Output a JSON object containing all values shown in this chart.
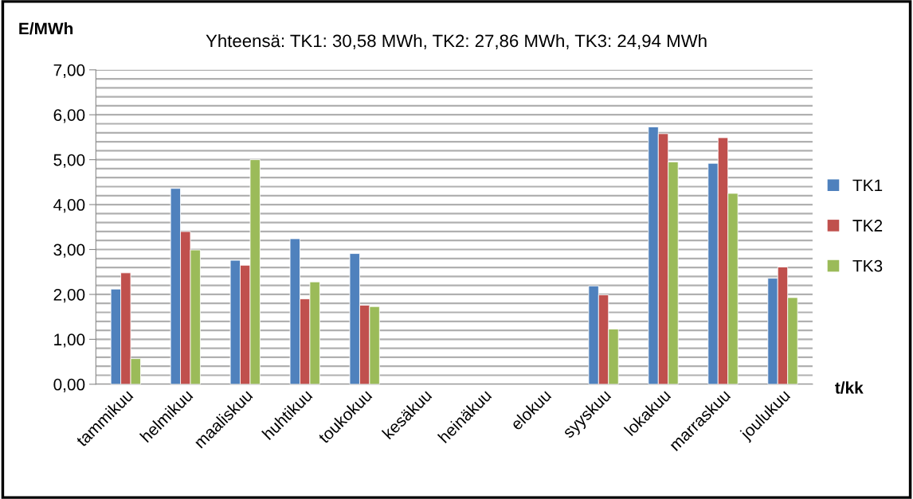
{
  "chart_data": {
    "type": "bar",
    "title": "Yhteensä: TK1: 30,58 MWh, TK2: 27,86 MWh, TK3: 24,94 MWh",
    "ylabel": "E/MWh",
    "xlabel": "t/kk",
    "categories": [
      "tammikuu",
      "helmikuu",
      "maaliskuu",
      "huhtikuu",
      "toukokuu",
      "kesäkuu",
      "heinäkuu",
      "elokuu",
      "syyskuu",
      "lokakuu",
      "marraskuu",
      "joulukuu"
    ],
    "series": [
      {
        "name": "TK1",
        "color": "#4f81bd",
        "values": [
          2.12,
          4.36,
          2.76,
          3.24,
          2.91,
          null,
          null,
          null,
          2.19,
          5.73,
          4.92,
          2.36
        ]
      },
      {
        "name": "TK2",
        "color": "#c0504d",
        "values": [
          2.48,
          3.4,
          2.65,
          1.9,
          1.76,
          null,
          null,
          null,
          1.99,
          5.58,
          5.49,
          2.61
        ]
      },
      {
        "name": "TK3",
        "color": "#9bbb59",
        "values": [
          0.57,
          2.99,
          5.0,
          2.28,
          1.73,
          null,
          null,
          null,
          1.23,
          4.95,
          4.25,
          1.93
        ]
      }
    ],
    "ylim": [
      0,
      7
    ],
    "yticks": [
      {
        "value": 0,
        "label": "0,00"
      },
      {
        "value": 0.2,
        "label": null
      },
      {
        "value": 0.4,
        "label": null
      },
      {
        "value": 0.6,
        "label": null
      },
      {
        "value": 0.8,
        "label": null
      },
      {
        "value": 1,
        "label": "1,00"
      },
      {
        "value": 1.2,
        "label": null
      },
      {
        "value": 1.4,
        "label": null
      },
      {
        "value": 1.6,
        "label": null
      },
      {
        "value": 1.8,
        "label": null
      },
      {
        "value": 2,
        "label": "2,00"
      },
      {
        "value": 2.2,
        "label": null
      },
      {
        "value": 2.4,
        "label": null
      },
      {
        "value": 2.6,
        "label": null
      },
      {
        "value": 2.8,
        "label": null
      },
      {
        "value": 3,
        "label": "3,00"
      },
      {
        "value": 3.2,
        "label": null
      },
      {
        "value": 3.4,
        "label": null
      },
      {
        "value": 3.6,
        "label": null
      },
      {
        "value": 3.8,
        "label": null
      },
      {
        "value": 4,
        "label": "4,00"
      },
      {
        "value": 4.2,
        "label": null
      },
      {
        "value": 4.4,
        "label": null
      },
      {
        "value": 4.6,
        "label": null
      },
      {
        "value": 4.8,
        "label": null
      },
      {
        "value": 5,
        "label": "5,00"
      },
      {
        "value": 5.2,
        "label": null
      },
      {
        "value": 5.4,
        "label": null
      },
      {
        "value": 5.6,
        "label": null
      },
      {
        "value": 5.8,
        "label": null
      },
      {
        "value": 6,
        "label": "6,00"
      },
      {
        "value": 6.2,
        "label": null
      },
      {
        "value": 6.4,
        "label": null
      },
      {
        "value": 6.6,
        "label": null
      },
      {
        "value": 6.8,
        "label": null
      },
      {
        "value": 7,
        "label": "7,00"
      }
    ],
    "grid": "y",
    "legend": "right"
  }
}
